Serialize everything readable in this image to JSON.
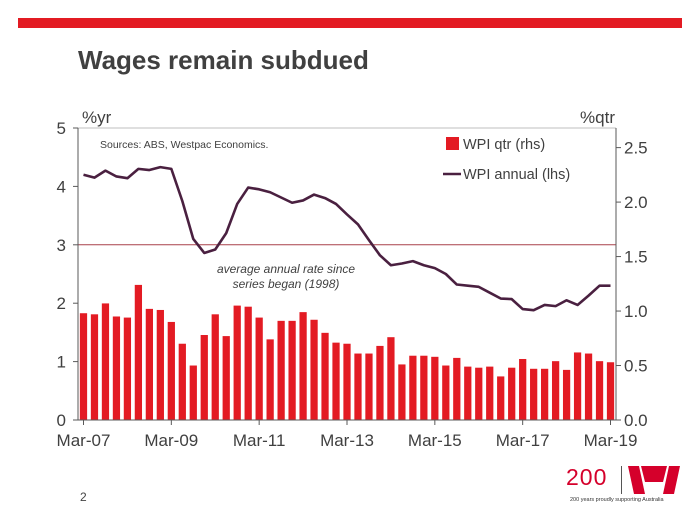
{
  "slide": {
    "title": "Wages remain subdued",
    "page_number": "2",
    "accent_color": "#d5002b"
  },
  "logo": {
    "anniversary": "200",
    "tagline": "200 years proudly supporting Australia"
  },
  "chart_data": {
    "type": "bar+line",
    "title": "Wages remain subdued",
    "source_note": "Sources: ABS, Westpac Economics.",
    "left_axis": {
      "unit_label": "%yr",
      "range": [
        0,
        5
      ],
      "ticks": [
        "0",
        "1",
        "2",
        "3",
        "4",
        "5"
      ]
    },
    "right_axis": {
      "unit_label": "%qtr",
      "range": [
        0,
        2.68
      ],
      "ticks": [
        "0.0",
        "0.5",
        "1.0",
        "1.5",
        "2.0",
        "2.5"
      ]
    },
    "x_tick_labels": [
      "Mar-07",
      "Mar-09",
      "Mar-11",
      "Mar-13",
      "Mar-15",
      "Mar-17",
      "Mar-19"
    ],
    "reference_line": {
      "value": 3.0,
      "axis": "left",
      "annotation": [
        "average annual rate since",
        "series began (1998)"
      ]
    },
    "legend": {
      "position": "top-right",
      "entries": [
        "WPI qtr (rhs)",
        "WPI annual (lhs)"
      ]
    },
    "series": [
      {
        "name": "WPI qtr (rhs)",
        "type": "bar",
        "axis": "right",
        "color": "#e31b23",
        "values": [
          0.98,
          0.97,
          1.07,
          0.95,
          0.94,
          1.24,
          1.02,
          1.01,
          0.9,
          0.7,
          0.5,
          0.78,
          0.97,
          0.77,
          1.05,
          1.04,
          0.94,
          0.74,
          0.91,
          0.91,
          0.99,
          0.92,
          0.8,
          0.71,
          0.7,
          0.61,
          0.61,
          0.68,
          0.76,
          0.51,
          0.59,
          0.59,
          0.58,
          0.5,
          0.57,
          0.49,
          0.48,
          0.49,
          0.4,
          0.48,
          0.56,
          0.47,
          0.47,
          0.54,
          0.46,
          0.62,
          0.61,
          0.54,
          0.53
        ]
      },
      {
        "name": "WPI annual (lhs)",
        "type": "line",
        "axis": "left",
        "color": "#4a2040",
        "values": [
          4.2,
          4.15,
          4.27,
          4.17,
          4.14,
          4.3,
          4.28,
          4.33,
          4.3,
          3.75,
          3.1,
          2.86,
          2.92,
          3.2,
          3.7,
          3.98,
          3.95,
          3.9,
          3.81,
          3.72,
          3.76,
          3.86,
          3.8,
          3.7,
          3.52,
          3.35,
          3.08,
          2.82,
          2.65,
          2.68,
          2.72,
          2.65,
          2.6,
          2.5,
          2.32,
          2.3,
          2.28,
          2.18,
          2.08,
          2.07,
          1.9,
          1.88,
          1.97,
          1.95,
          2.05,
          1.97,
          2.13,
          2.3,
          2.3
        ]
      }
    ]
  }
}
